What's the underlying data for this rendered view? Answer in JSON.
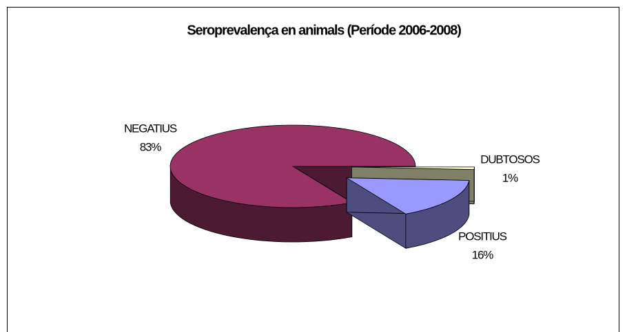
{
  "chart_data": {
    "type": "pie3d",
    "title": "Seroprevalença en animals (Període 2006-2008)",
    "categories": [
      "NEGATIUS",
      "POSITIUS",
      "DUBTOSOS"
    ],
    "values": [
      83,
      16,
      1
    ],
    "value_labels": [
      "83%",
      "16%",
      "1%"
    ],
    "colors": [
      "#993366",
      "#9999ff",
      "#ffffcc"
    ],
    "side_colors": [
      "#4d1a33",
      "#4d4d80",
      "#808066"
    ]
  }
}
